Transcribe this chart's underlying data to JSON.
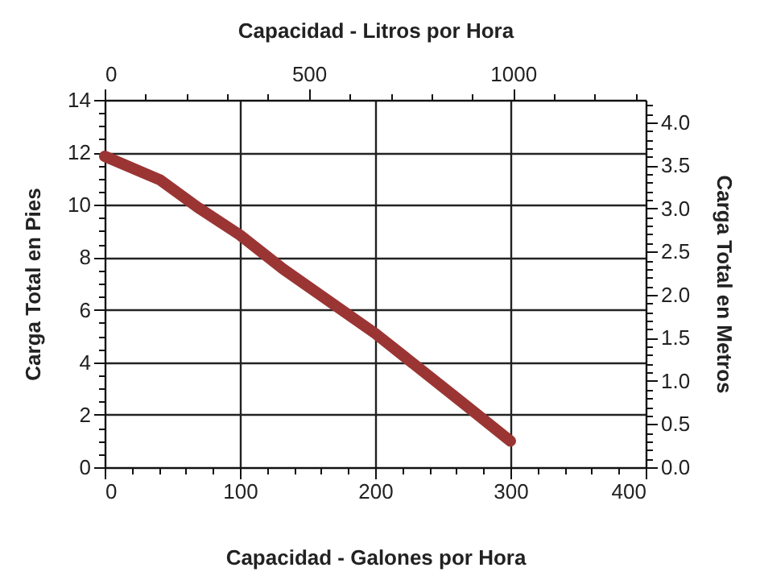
{
  "chart_data": {
    "type": "line",
    "xlabel": "Capacidad - Galones por Hora",
    "ylabel": "Carga Total en Pies",
    "x2label": "Capacidad - Litros por Hora",
    "y2label": "Carga Total en Metros",
    "series": [
      {
        "color": "#9b3534",
        "x": [
          0,
          41,
          69,
          100,
          132,
          200,
          260,
          300
        ],
        "values": [
          11.85,
          10.95,
          9.9,
          8.85,
          7.55,
          5.1,
          2.65,
          1.0
        ]
      }
    ],
    "xlim": [
      0,
      400
    ],
    "xticks": [
      0,
      {
        "value": 20,
        "label": null
      },
      {
        "value": 40,
        "label": null
      },
      {
        "value": 60,
        "label": null
      },
      {
        "value": 80,
        "label": null
      },
      100,
      {
        "value": 120,
        "label": null
      },
      {
        "value": 140,
        "label": null
      },
      {
        "value": 160,
        "label": null
      },
      {
        "value": 180,
        "label": null
      },
      200,
      {
        "value": 220,
        "label": null
      },
      {
        "value": 240,
        "label": null
      },
      {
        "value": 260,
        "label": null
      },
      {
        "value": 280,
        "label": null
      },
      300,
      {
        "value": 320,
        "label": null
      },
      {
        "value": 340,
        "label": null
      },
      {
        "value": 360,
        "label": null
      },
      {
        "value": 380,
        "label": null
      },
      400
    ],
    "x2lim": [
      0,
      1325
    ],
    "x2ticks": [
      0,
      {
        "value": 100,
        "label": null
      },
      {
        "value": 200,
        "label": null
      },
      {
        "value": 300,
        "label": null
      },
      {
        "value": 400,
        "label": null
      },
      500,
      {
        "value": 600,
        "label": null
      },
      {
        "value": 700,
        "label": null
      },
      {
        "value": 800,
        "label": null
      },
      {
        "value": 900,
        "label": null
      },
      1000,
      {
        "value": 1100,
        "label": null
      },
      {
        "value": 1200,
        "label": null
      },
      {
        "value": 1300,
        "label": null
      }
    ],
    "ylim": [
      0,
      14
    ],
    "yticks": [
      0,
      {
        "value": 0.5,
        "label": null
      },
      {
        "value": 1,
        "label": null
      },
      {
        "value": 1.5,
        "label": null
      },
      2,
      {
        "value": 2.5,
        "label": null
      },
      {
        "value": 3,
        "label": null
      },
      {
        "value": 3.5,
        "label": null
      },
      4,
      {
        "value": 4.5,
        "label": null
      },
      {
        "value": 5,
        "label": null
      },
      {
        "value": 5.5,
        "label": null
      },
      6,
      {
        "value": 6.5,
        "label": null
      },
      {
        "value": 7,
        "label": null
      },
      {
        "value": 7.5,
        "label": null
      },
      8,
      {
        "value": 8.5,
        "label": null
      },
      {
        "value": 9,
        "label": null
      },
      {
        "value": 9.5,
        "label": null
      },
      10,
      {
        "value": 10.5,
        "label": null
      },
      {
        "value": 11,
        "label": null
      },
      {
        "value": 11.5,
        "label": null
      },
      12,
      {
        "value": 12.5,
        "label": null
      },
      {
        "value": 13,
        "label": null
      },
      {
        "value": 13.5,
        "label": null
      },
      14
    ],
    "y2lim": [
      0,
      4.26
    ],
    "y2ticks": [
      {
        "value": 0,
        "label": "0.0"
      },
      {
        "value": 0.1,
        "label": null
      },
      {
        "value": 0.2,
        "label": null
      },
      {
        "value": 0.3,
        "label": null
      },
      {
        "value": 0.4,
        "label": null
      },
      {
        "value": 0.5,
        "label": "0.5"
      },
      {
        "value": 0.6,
        "label": null
      },
      {
        "value": 0.7,
        "label": null
      },
      {
        "value": 0.8,
        "label": null
      },
      {
        "value": 0.9,
        "label": null
      },
      {
        "value": 1,
        "label": "1.0"
      },
      {
        "value": 1.1,
        "label": null
      },
      {
        "value": 1.2,
        "label": null
      },
      {
        "value": 1.3,
        "label": null
      },
      {
        "value": 1.4,
        "label": null
      },
      {
        "value": 1.5,
        "label": "1.5"
      },
      {
        "value": 1.6,
        "label": null
      },
      {
        "value": 1.7,
        "label": null
      },
      {
        "value": 1.8,
        "label": null
      },
      {
        "value": 1.9,
        "label": null
      },
      {
        "value": 2,
        "label": "2.0"
      },
      {
        "value": 2.1,
        "label": null
      },
      {
        "value": 2.2,
        "label": null
      },
      {
        "value": 2.3,
        "label": null
      },
      {
        "value": 2.4,
        "label": null
      },
      {
        "value": 2.5,
        "label": "2.5"
      },
      {
        "value": 2.6,
        "label": null
      },
      {
        "value": 2.7,
        "label": null
      },
      {
        "value": 2.8,
        "label": null
      },
      {
        "value": 2.9,
        "label": null
      },
      {
        "value": 3,
        "label": "3.0"
      },
      {
        "value": 3.1,
        "label": null
      },
      {
        "value": 3.2,
        "label": null
      },
      {
        "value": 3.3,
        "label": null
      },
      {
        "value": 3.4,
        "label": null
      },
      {
        "value": 3.5,
        "label": "3.5"
      },
      {
        "value": 3.6,
        "label": null
      },
      {
        "value": 3.7,
        "label": null
      },
      {
        "value": 3.8,
        "label": null
      },
      {
        "value": 3.9,
        "label": null
      },
      {
        "value": 4,
        "label": "4.0"
      },
      {
        "value": 4.1,
        "label": null
      },
      {
        "value": 4.2,
        "label": null
      }
    ],
    "grid": true,
    "line_style": "solid"
  }
}
